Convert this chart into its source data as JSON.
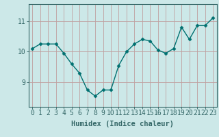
{
  "x": [
    0,
    1,
    2,
    3,
    4,
    5,
    6,
    7,
    8,
    9,
    10,
    11,
    12,
    13,
    14,
    15,
    16,
    17,
    18,
    19,
    20,
    21,
    22,
    23
  ],
  "y": [
    10.1,
    10.25,
    10.25,
    10.25,
    9.95,
    9.6,
    9.3,
    8.75,
    8.55,
    8.75,
    8.75,
    9.55,
    10.0,
    10.25,
    10.4,
    10.35,
    10.05,
    9.95,
    10.1,
    10.8,
    10.4,
    10.85,
    10.85,
    11.1
  ],
  "line_color": "#007070",
  "marker": "D",
  "markersize": 2.5,
  "linewidth": 1.0,
  "bg_color": "#cce8e8",
  "grid_color": "#c0a0a0",
  "xlabel": "Humidex (Indice chaleur)",
  "ylim": [
    8.2,
    11.55
  ],
  "yticks": [
    9,
    10,
    11
  ],
  "xticks": [
    0,
    1,
    2,
    3,
    4,
    5,
    6,
    7,
    8,
    9,
    10,
    11,
    12,
    13,
    14,
    15,
    16,
    17,
    18,
    19,
    20,
    21,
    22,
    23
  ],
  "xlabel_fontsize": 7.5,
  "tick_fontsize": 7.0,
  "axes_color": "#336666"
}
